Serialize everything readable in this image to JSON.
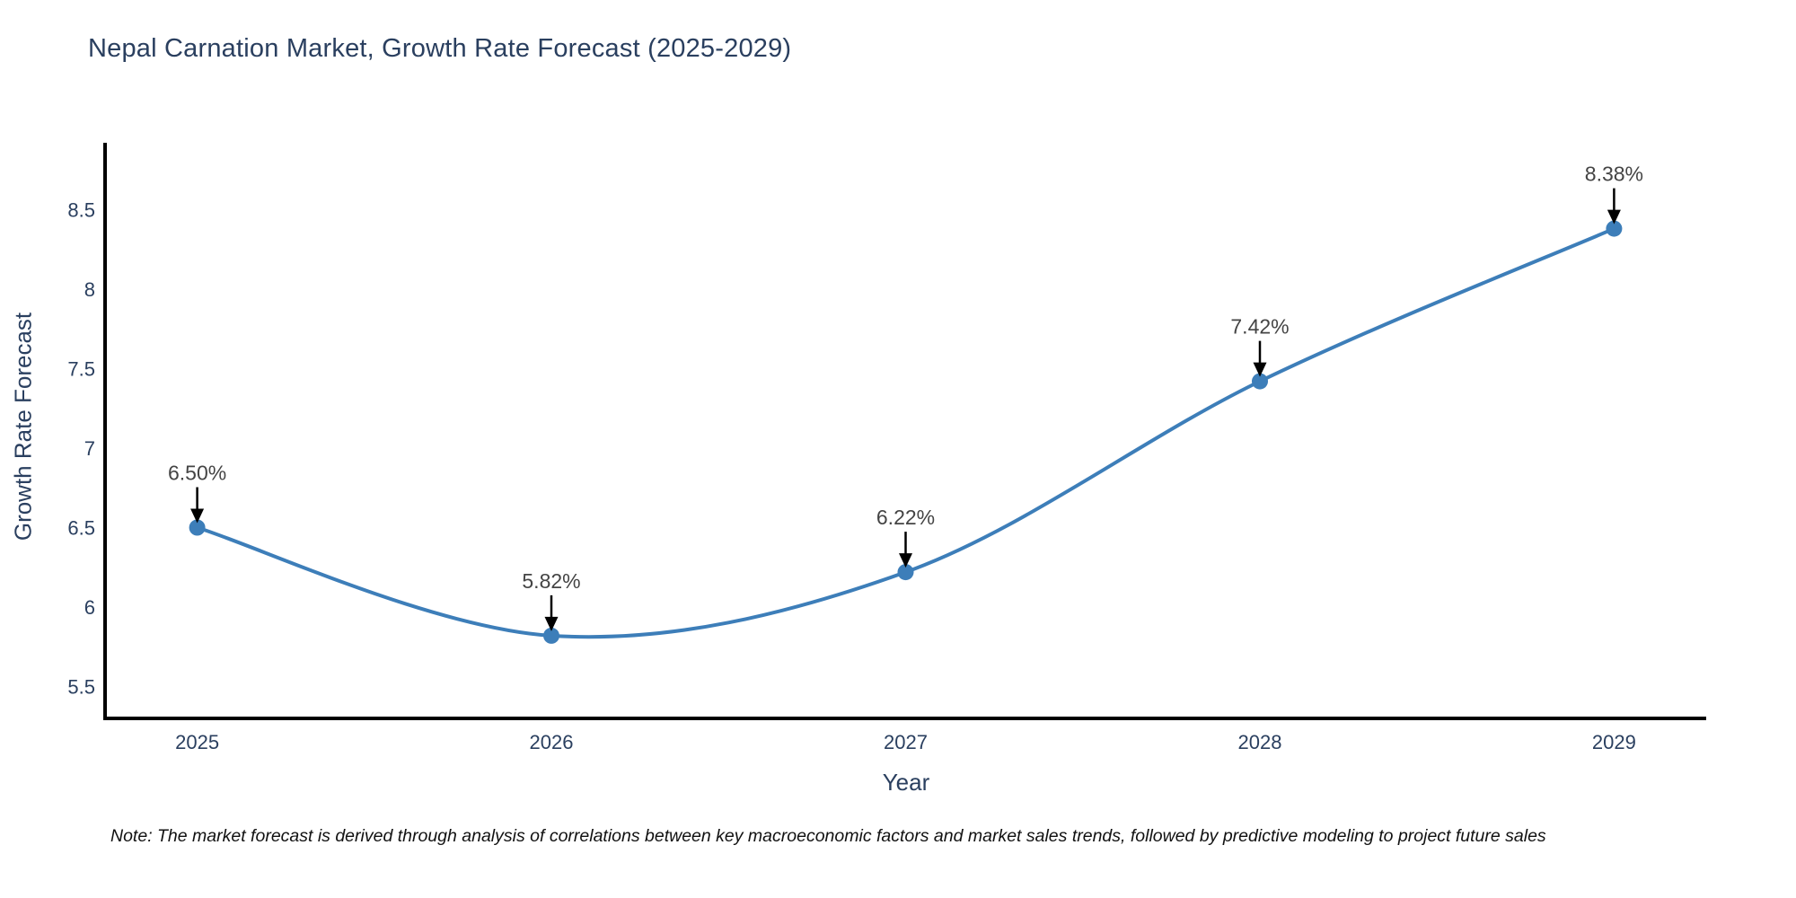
{
  "note": "Note: The market forecast is derived through analysis of correlations between key macroeconomic factors and market sales trends, followed by predictive modeling to project future sales",
  "chart_data": {
    "type": "line",
    "title": "Nepal Carnation Market, Growth Rate Forecast (2025-2029)",
    "xlabel": "Year",
    "ylabel": "Growth Rate Forecast",
    "x": [
      2025,
      2026,
      2027,
      2028,
      2029
    ],
    "x_tick_labels": [
      "2025",
      "2026",
      "2027",
      "2028",
      "2029"
    ],
    "series": [
      {
        "name": "Growth Rate Forecast",
        "values": [
          6.5,
          5.82,
          6.22,
          7.42,
          8.38
        ]
      }
    ],
    "point_labels": [
      "6.50%",
      "5.82%",
      "6.22%",
      "7.42%",
      "8.38%"
    ],
    "yticks": [
      5.5,
      6,
      6.5,
      7,
      7.5,
      8,
      8.5
    ],
    "ytick_labels": [
      "5.5",
      "6",
      "6.5",
      "7",
      "7.5",
      "8",
      "8.5"
    ],
    "xlim": [
      2024.74,
      2029.26
    ],
    "ylim": [
      5.3,
      8.92
    ],
    "line_shape": "spline",
    "line_width": 4,
    "marker_radius": 9,
    "grid": false,
    "legend": "none",
    "colors": {
      "line": "#3d7eb9",
      "marker": "#3d7eb9",
      "title": "#2a3f5f",
      "axis_label": "#2a3f5f",
      "tick_label": "#2a3f5f",
      "annotation_text": "#444444",
      "annotation_arrow": "#000000",
      "axis_line": "#000000",
      "background": "#ffffff"
    }
  }
}
